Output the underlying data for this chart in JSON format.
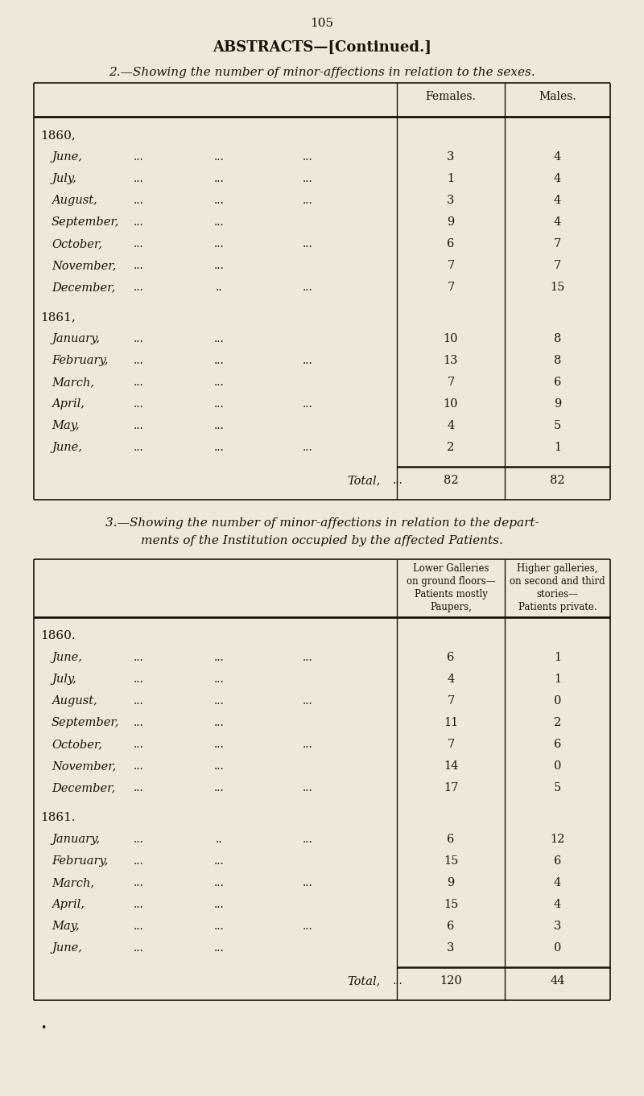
{
  "bg_color": "#ede8da",
  "page_number": "105",
  "main_title": "ABSTRACTS—[Continued.]",
  "table1_subtitle": "2.—Showing the number of minor-affections in relation to the sexes.",
  "table1_col1_header": "Females.",
  "table1_col2_header": "Males.",
  "table1_year1": "1860,",
  "table1_year2": "1861,",
  "table2_subtitle_line1": "3.—Showing the number of minor-affections in relation to the depart-",
  "table2_subtitle_line2": "ments of the Institution occupied by the affected Patients.",
  "table2_col1_header_lines": [
    "Lower Galleries",
    "on ground floors—",
    "Patients mostly",
    "Paupers,"
  ],
  "table2_col2_header_lines": [
    "Higher galleries,",
    "on second and third",
    "stories—",
    "Patients private."
  ],
  "table2_year1": "1860.",
  "table2_year2": "1861.",
  "table1_total_label": "Total,",
  "table1_total_dots": "...",
  "table1_total_f": "82",
  "table1_total_m": "82",
  "table2_total_label": "Total,",
  "table2_total_dots": "...",
  "table2_total_col1": "120",
  "table2_total_col2": "44",
  "months_1860_t1": [
    [
      "June,",
      "...",
      "...",
      "...",
      "3",
      "4"
    ],
    [
      "July,",
      "...",
      "...",
      "...",
      "1",
      "4"
    ],
    [
      "August,",
      "...",
      "...",
      "...",
      "3",
      "4"
    ],
    [
      "September,",
      "...",
      "...",
      "",
      "9",
      "4"
    ],
    [
      "October,",
      "...",
      "...",
      "...",
      "6",
      "7"
    ],
    [
      "November,",
      "...",
      "...",
      "",
      "7",
      "7"
    ],
    [
      "December,",
      "...",
      "..",
      "...",
      "7",
      "15"
    ]
  ],
  "months_1861_t1": [
    [
      "January,",
      "...",
      "...",
      "",
      "10",
      "8"
    ],
    [
      "February,",
      "...",
      "...",
      "...",
      "13",
      "8"
    ],
    [
      "March,",
      "...",
      "...",
      "",
      "7",
      "6"
    ],
    [
      "April,",
      "...",
      "...",
      "...",
      "10",
      "9"
    ],
    [
      "May,",
      "...",
      "...",
      "",
      "4",
      "5"
    ],
    [
      "June,",
      "...",
      "...",
      "...",
      "2",
      "1"
    ]
  ],
  "months_1860_t2": [
    [
      "June,",
      "...",
      "...",
      "...",
      "6",
      "1"
    ],
    [
      "July,",
      "...",
      "...",
      "",
      "4",
      "1"
    ],
    [
      "August,",
      "...",
      "...",
      "...",
      "7",
      "0"
    ],
    [
      "September,",
      "...",
      "...",
      "",
      "11",
      "2"
    ],
    [
      "October,",
      "...",
      "...",
      "...",
      "7",
      "6"
    ],
    [
      "November,",
      "...",
      "...",
      "",
      "14",
      "0"
    ],
    [
      "December,",
      "...",
      "...",
      "...",
      "17",
      "5"
    ]
  ],
  "months_1861_t2": [
    [
      "January,",
      "...",
      "..",
      "...",
      "6",
      "12"
    ],
    [
      "February,",
      "...",
      "...",
      "",
      "15",
      "6"
    ],
    [
      "March,",
      "...",
      "...",
      "...",
      "9",
      "4"
    ],
    [
      "April,",
      "...",
      "...",
      "",
      "15",
      "4"
    ],
    [
      "May,",
      "...",
      "...",
      "...",
      "6",
      "3"
    ],
    [
      "June,",
      "...",
      "...",
      "",
      "3",
      "0"
    ]
  ]
}
